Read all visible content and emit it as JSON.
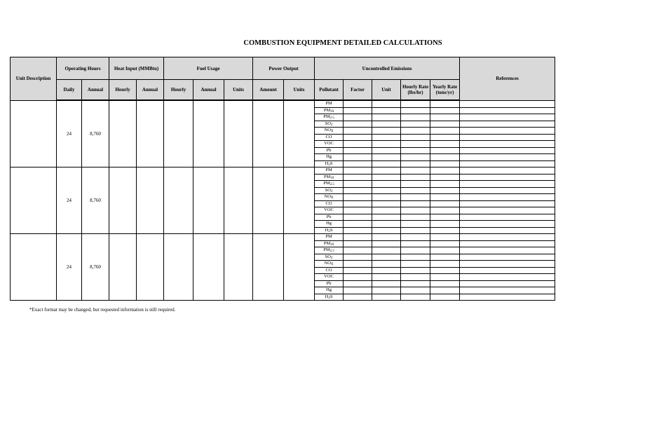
{
  "title": "COMBUSTION EQUIPMENT DETAILED CALCULATIONS",
  "headers": {
    "unit_description": "Unit Description",
    "operating_hours": "Operating Hours",
    "heat_input": "Heat Input (MMBtu)",
    "fuel_usage": "Fuel Usage",
    "power_output": "Power Output",
    "uncontrolled_emissions": "Uncontrolled Emissions",
    "references": "References",
    "daily": "Daily",
    "annual": "Annual",
    "hourly": "Hourly",
    "units": "Units",
    "amount": "Amount",
    "pollutant": "Pollutant",
    "factor": "Factor",
    "unit": "Unit",
    "hourly_rate": "Hourly Rate (lbs/hr)",
    "yearly_rate": "Yearly Rate (tons/yr)"
  },
  "pollutants": [
    {
      "base": "PM",
      "sub": ""
    },
    {
      "base": "PM",
      "sub": "10"
    },
    {
      "base": "PM",
      "sub": "2.5"
    },
    {
      "base": "SO",
      "sub": "2"
    },
    {
      "base": "NO",
      "sub": "X"
    },
    {
      "base": "CO",
      "sub": ""
    },
    {
      "base": "VOC",
      "sub": ""
    },
    {
      "base": "Pb",
      "sub": ""
    },
    {
      "base": "Hg",
      "sub": ""
    },
    {
      "base": "H",
      "sub": "2",
      "tail": "S"
    }
  ],
  "units": [
    {
      "description": "",
      "daily": "24",
      "annual": "8,760"
    },
    {
      "description": "",
      "daily": "24",
      "annual": "8,760"
    },
    {
      "description": "",
      "daily": "24",
      "annual": "8,760"
    }
  ],
  "footnote": "*Exact format may be changed, but requested information is still required."
}
